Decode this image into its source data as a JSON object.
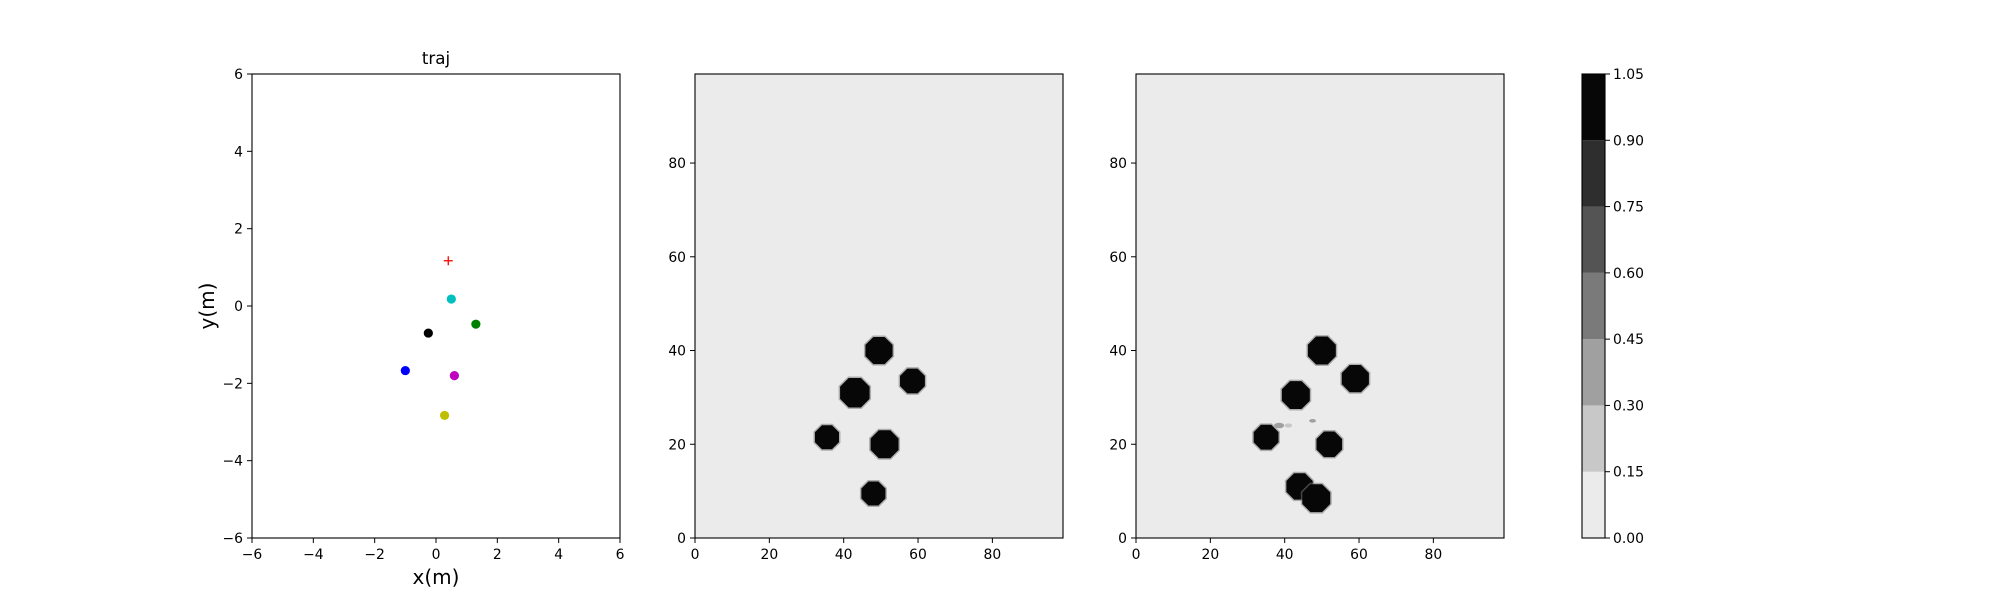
{
  "chart_data": [
    {
      "type": "scatter",
      "title": "traj",
      "xlabel": "x(m)",
      "ylabel": "y(m)",
      "xlim": [
        -6,
        6
      ],
      "ylim": [
        -6,
        6
      ],
      "xticks": [
        -6,
        -4,
        -2,
        0,
        2,
        4,
        6
      ],
      "yticks": [
        -6,
        -4,
        -2,
        0,
        2,
        4,
        6
      ],
      "grid": false,
      "series": [
        {
          "marker": "plus",
          "color": "#ff0000",
          "points": [
            [
              0.4,
              1.17
            ]
          ]
        },
        {
          "marker": "dot",
          "color": "#00bfbf",
          "points": [
            [
              0.5,
              0.18
            ]
          ]
        },
        {
          "marker": "dot",
          "color": "#008000",
          "points": [
            [
              1.3,
              -0.47
            ]
          ]
        },
        {
          "marker": "dot",
          "color": "#000000",
          "points": [
            [
              -0.25,
              -0.7
            ]
          ]
        },
        {
          "marker": "dot",
          "color": "#0000ff",
          "points": [
            [
              -1.0,
              -1.67
            ]
          ]
        },
        {
          "marker": "dot",
          "color": "#bf00bf",
          "points": [
            [
              0.6,
              -1.8
            ]
          ]
        },
        {
          "marker": "dot",
          "color": "#bfbf00",
          "points": [
            [
              0.28,
              -2.83
            ]
          ]
        }
      ]
    },
    {
      "type": "heatmap",
      "xlim": [
        0,
        99
      ],
      "ylim": [
        0,
        99
      ],
      "xticks": [
        0,
        20,
        40,
        60,
        80
      ],
      "yticks": [
        0,
        20,
        40,
        60,
        80
      ],
      "background": "#ebebeb",
      "blobs": [
        {
          "x": 49.5,
          "y": 40,
          "r": 3.5,
          "v": 1.0
        },
        {
          "x": 58.5,
          "y": 33.5,
          "r": 3.2,
          "v": 1.0
        },
        {
          "x": 43,
          "y": 31,
          "r": 3.8,
          "v": 1.0
        },
        {
          "x": 35.5,
          "y": 21.5,
          "r": 3.1,
          "v": 1.0
        },
        {
          "x": 51,
          "y": 20,
          "r": 3.6,
          "v": 1.0
        },
        {
          "x": 48,
          "y": 9.5,
          "r": 3.1,
          "v": 1.0
        }
      ]
    },
    {
      "type": "heatmap",
      "xlim": [
        0,
        99
      ],
      "ylim": [
        0,
        99
      ],
      "xticks": [
        0,
        20,
        40,
        60,
        80
      ],
      "yticks": [
        0,
        20,
        40,
        60,
        80
      ],
      "background": "#ebebeb",
      "blobs": [
        {
          "x": 50,
          "y": 40,
          "r": 3.6,
          "v": 1.0
        },
        {
          "x": 59,
          "y": 34,
          "r": 3.5,
          "v": 1.0
        },
        {
          "x": 43,
          "y": 30.5,
          "r": 3.6,
          "v": 1.0
        },
        {
          "x": 35,
          "y": 21.5,
          "r": 3.2,
          "v": 1.0
        },
        {
          "x": 52,
          "y": 20,
          "r": 3.3,
          "v": 1.0
        },
        {
          "x": 44,
          "y": 11,
          "r": 3.4,
          "v": 1.0
        },
        {
          "x": 48.5,
          "y": 8.5,
          "r": 3.6,
          "v": 1.0
        },
        {
          "x": 38.5,
          "y": 24,
          "r": 1.2,
          "v": 0.3
        },
        {
          "x": 41,
          "y": 24,
          "r": 0.9,
          "v": 0.25
        },
        {
          "x": 47.5,
          "y": 25,
          "r": 0.8,
          "v": 0.3
        }
      ]
    },
    {
      "type": "colorbar",
      "levels": [
        0.0,
        0.15,
        0.3,
        0.45,
        0.6,
        0.75,
        0.9,
        1.05
      ],
      "tick_labels": [
        "0.00",
        "0.15",
        "0.30",
        "0.45",
        "0.60",
        "0.75",
        "0.90",
        "1.05"
      ],
      "colors": [
        "#ebebeb",
        "#c8c8c8",
        "#a0a0a0",
        "#7a7a7a",
        "#545454",
        "#2e2e2e",
        "#070707"
      ]
    }
  ]
}
